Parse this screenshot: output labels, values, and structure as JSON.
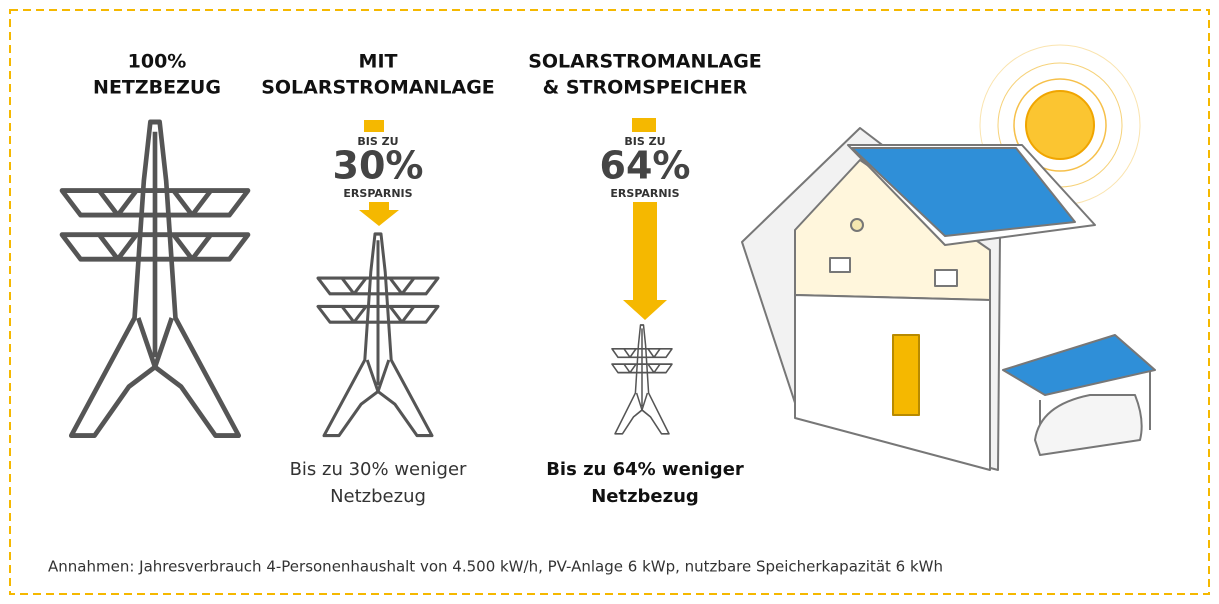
{
  "columns": [
    {
      "title": [
        "100%",
        "NETZBEZUG"
      ]
    },
    {
      "title": [
        "MIT",
        "SOLARSTROMANLAGE"
      ],
      "badge": {
        "prefix": "BIS ZU",
        "value": "30%",
        "suffix": "ERSPARNIS"
      },
      "caption": [
        "Bis zu 30% weniger",
        "Netzbezug"
      ]
    },
    {
      "title": [
        "SOLARSTROMANLAGE",
        "& STROMSPEICHER"
      ],
      "badge": {
        "prefix": "BIS ZU",
        "value": "64%",
        "suffix": "ERSPARNIS"
      },
      "caption": [
        "Bis zu 64% weniger",
        "Netzbezug"
      ]
    }
  ],
  "footnote": "Annahmen: Jahresverbrauch 4-Personenhaushalt von 4.500 kW/h, PV-Anlage 6 kWp, nutzbare Speicherkapazität 6 kWh"
}
